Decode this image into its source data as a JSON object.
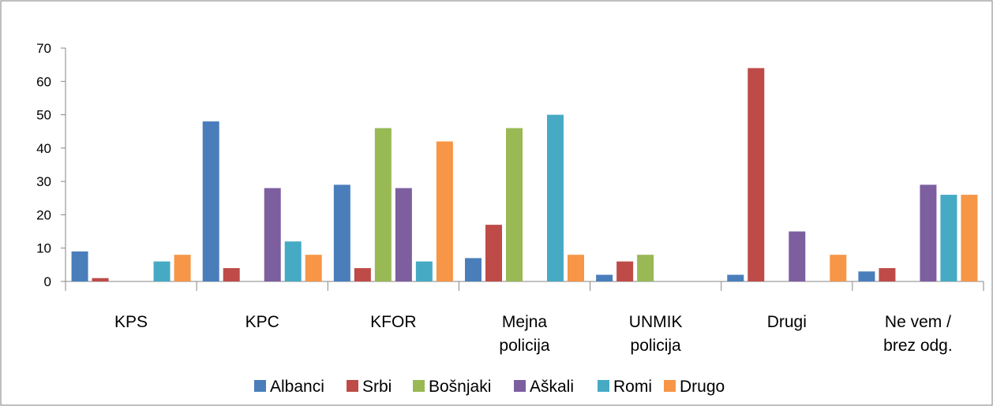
{
  "chart_data": {
    "type": "bar",
    "categories": [
      "KPS",
      "KPC",
      "KFOR",
      "Mejna\npolicija",
      "UNMIK\npolicija",
      "Drugi",
      "Ne vem /\nbrez odg."
    ],
    "series": [
      {
        "name": "Albanci",
        "color": "#4a7ebb",
        "values": [
          9,
          48,
          29,
          7,
          2,
          2,
          3
        ]
      },
      {
        "name": "Srbi",
        "color": "#be4b48",
        "values": [
          1,
          4,
          4,
          17,
          6,
          64,
          4
        ]
      },
      {
        "name": "Bošnjaki",
        "color": "#98b954",
        "values": [
          0,
          0,
          46,
          46,
          8,
          0,
          0
        ]
      },
      {
        "name": "Aškali",
        "color": "#7d5fa0",
        "values": [
          0,
          28,
          28,
          0,
          0,
          15,
          29
        ]
      },
      {
        "name": "Romi",
        "color": "#46aac5",
        "values": [
          6,
          12,
          6,
          50,
          0,
          0,
          26
        ]
      },
      {
        "name": "Drugo",
        "color": "#f79646",
        "values": [
          8,
          8,
          42,
          8,
          0,
          8,
          26
        ]
      }
    ],
    "ylim": [
      0,
      70
    ],
    "yticks": [
      0,
      10,
      20,
      30,
      40,
      50,
      60,
      70
    ],
    "grid": false,
    "legend": "bottom"
  }
}
